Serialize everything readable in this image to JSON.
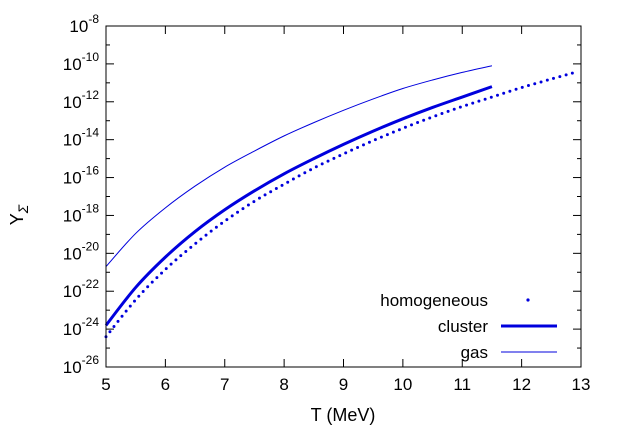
{
  "chart_data": {
    "type": "line",
    "title": "",
    "xlabel": "T (MeV)",
    "ylabel": "Y",
    "ylabel_subscript": "Σ",
    "xlim": [
      5,
      13
    ],
    "ylim_log10": [
      -26,
      -8
    ],
    "y_scale": "log",
    "x_ticks": [
      "5",
      "6",
      "7",
      "8",
      "9",
      "10",
      "11",
      "12",
      "13"
    ],
    "y_ticks": [
      {
        "base": "10",
        "exp": "-8"
      },
      {
        "base": "10",
        "exp": "-10"
      },
      {
        "base": "10",
        "exp": "-12"
      },
      {
        "base": "10",
        "exp": "-14"
      },
      {
        "base": "10",
        "exp": "-16"
      },
      {
        "base": "10",
        "exp": "-18"
      },
      {
        "base": "10",
        "exp": "-20"
      },
      {
        "base": "10",
        "exp": "-22"
      },
      {
        "base": "10",
        "exp": "-24"
      },
      {
        "base": "10",
        "exp": "-26"
      }
    ],
    "grid": false,
    "legend_position": "bottom-right",
    "color": "#0000dd",
    "series": [
      {
        "name": "homogeneous",
        "style": "dotted",
        "x": [
          5.0,
          5.5,
          6.0,
          6.5,
          7.0,
          7.5,
          8.0,
          8.5,
          9.0,
          9.5,
          10.0,
          10.5,
          11.0,
          11.5,
          12.0,
          12.5,
          12.9
        ],
        "y_log10": [
          -24.4,
          -22.45,
          -20.85,
          -19.5,
          -18.3,
          -17.25,
          -16.35,
          -15.5,
          -14.75,
          -14.05,
          -13.4,
          -12.8,
          -12.25,
          -11.75,
          -11.25,
          -10.8,
          -10.45
        ]
      },
      {
        "name": "cluster",
        "style": "thick",
        "x": [
          5.0,
          5.5,
          6.0,
          6.5,
          7.0,
          7.5,
          8.0,
          8.5,
          9.0,
          9.5,
          10.0,
          10.5,
          11.0,
          11.5
        ],
        "y_log10": [
          -23.8,
          -21.8,
          -20.2,
          -18.85,
          -17.7,
          -16.7,
          -15.8,
          -15.0,
          -14.25,
          -13.55,
          -12.9,
          -12.3,
          -11.75,
          -11.2
        ]
      },
      {
        "name": "gas",
        "style": "thin",
        "x": [
          5.0,
          5.5,
          6.0,
          6.5,
          7.0,
          7.5,
          8.0,
          8.5,
          9.0,
          9.5,
          10.0,
          10.5,
          11.0,
          11.5
        ],
        "y_log10": [
          -20.7,
          -18.95,
          -17.6,
          -16.45,
          -15.45,
          -14.6,
          -13.8,
          -13.1,
          -12.45,
          -11.85,
          -11.3,
          -10.85,
          -10.45,
          -10.1
        ]
      }
    ]
  }
}
